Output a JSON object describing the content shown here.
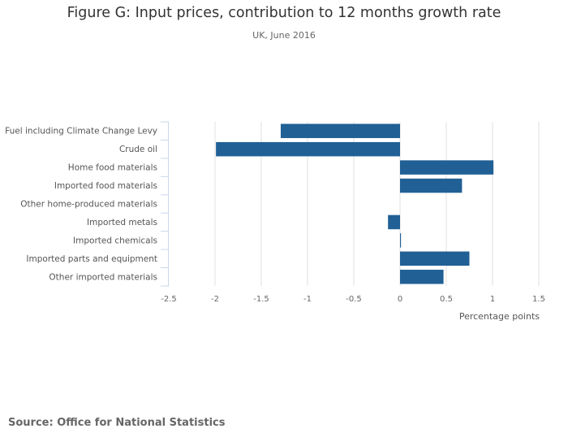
{
  "chart_data": {
    "type": "bar",
    "orientation": "horizontal",
    "title": "Figure G: Input prices, contribution to 12 months growth rate",
    "subtitle": "UK, June 2016",
    "categories": [
      "Fuel including Climate Change Levy",
      "Crude oil",
      "Home food materials",
      "Imported food materials",
      "Other home-produced materials",
      "Imported metals",
      "Imported chemicals",
      "Imported parts and equipment",
      "Other imported materials"
    ],
    "values": [
      -1.29,
      -1.99,
      1.01,
      0.67,
      0.0,
      -0.13,
      0.01,
      0.75,
      0.47
    ],
    "xlabel": "Percentage points",
    "ylabel": "",
    "xlim": [
      -2.5,
      1.5
    ],
    "xticks": [
      -2.5,
      -2,
      -1.5,
      -1,
      -0.5,
      0,
      0.5,
      1,
      1.5
    ],
    "xtick_labels": [
      "-2.5",
      "-2",
      "-1.5",
      "-1",
      "-0.5",
      "0",
      "0.5",
      "1",
      "1.5"
    ],
    "grid": true,
    "legend": "none",
    "bar_color": "#206095",
    "source": "Source: Office for National Statistics"
  }
}
